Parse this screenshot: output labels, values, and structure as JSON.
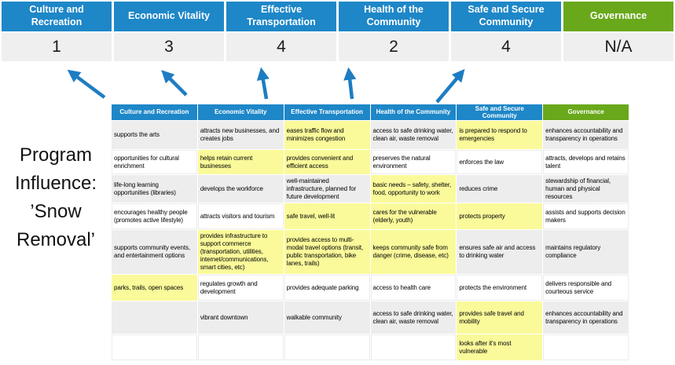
{
  "title": "Program Influence: ’Snow Removal’",
  "colors": {
    "header_blue": "#1E87C8",
    "header_green": "#69A81B",
    "highlight_yellow": "#FAFA9B",
    "gray_row": "#EDEDED",
    "score_band": "#F0EFEF",
    "arrow_blue": "#1D7DC2"
  },
  "scoreboard": {
    "categories": [
      {
        "label": "Culture and Recreation",
        "score": "1",
        "color": "#1E87C8"
      },
      {
        "label": "Economic Vitality",
        "score": "3",
        "color": "#1E87C8"
      },
      {
        "label": "Effective Transportation",
        "score": "4",
        "color": "#1E87C8"
      },
      {
        "label": "Health of the Community",
        "score": "2",
        "color": "#1E87C8"
      },
      {
        "label": "Safe and Secure Community",
        "score": "4",
        "color": "#1E87C8"
      },
      {
        "label": "Governance",
        "score": "N/A",
        "color": "#69A81B"
      }
    ]
  },
  "matrix": {
    "headers": [
      {
        "label": "Culture and Recreation",
        "color": "#1E87C8"
      },
      {
        "label": "Economic Vitality",
        "color": "#1E87C8"
      },
      {
        "label": "Effective Transportation",
        "color": "#1E87C8"
      },
      {
        "label": "Health of the Community",
        "color": "#1E87C8"
      },
      {
        "label": "Safe and Secure Community",
        "color": "#1E87C8"
      },
      {
        "label": "Governance",
        "color": "#69A81B"
      }
    ],
    "rows": [
      {
        "cells": [
          {
            "text": "supports the arts",
            "highlight": false
          },
          {
            "text": "attracts new businesses, and creates jobs",
            "highlight": false
          },
          {
            "text": "eases traffic flow and minimizes congestion",
            "highlight": true
          },
          {
            "text": "access to safe drinking water, clean air, waste removal",
            "highlight": false
          },
          {
            "text": "is prepared to respond to emergencies",
            "highlight": true
          },
          {
            "text": "enhances accountability and transparency in operations",
            "highlight": false
          }
        ]
      },
      {
        "cells": [
          {
            "text": "opportunities for cultural enrichment",
            "highlight": false
          },
          {
            "text": "helps retain current businesses",
            "highlight": true
          },
          {
            "text": "provides convenient and efficient access",
            "highlight": true
          },
          {
            "text": "preserves the natural environment",
            "highlight": false
          },
          {
            "text": "enforces the law",
            "highlight": false
          },
          {
            "text": "attracts, develops and retains talent",
            "highlight": false
          }
        ]
      },
      {
        "cells": [
          {
            "text": "life-long learning opportunities (libraries)",
            "highlight": false
          },
          {
            "text": "develops the workforce",
            "highlight": false
          },
          {
            "text": "well-maintained infrastructure, planned for future development",
            "highlight": false
          },
          {
            "text": "basic needs – safety, shelter, food, opportunity to work",
            "highlight": true
          },
          {
            "text": "reduces crime",
            "highlight": false
          },
          {
            "text": "stewardship of financial, human and physical resources",
            "highlight": false
          }
        ]
      },
      {
        "cells": [
          {
            "text": "encourages healthy people (promotes active lifestyle)",
            "highlight": false
          },
          {
            "text": "attracts visitors and tourism",
            "highlight": false
          },
          {
            "text": "safe travel, well-lit",
            "highlight": true
          },
          {
            "text": "cares for the vulnerable (elderly, youth)",
            "highlight": true
          },
          {
            "text": "protects property",
            "highlight": true
          },
          {
            "text": "assists and supports decision makers",
            "highlight": false
          }
        ]
      },
      {
        "cells": [
          {
            "text": "supports community events, and entertainment options",
            "highlight": false
          },
          {
            "text": "provides infrastructure to support commerce (transportation, utilities, internet/communications, smart cities, etc)",
            "highlight": true
          },
          {
            "text": "provides access to multi-modal travel options (transit, public transportation, bike lanes, trails)",
            "highlight": true
          },
          {
            "text": "keeps community safe from danger (crime, disease, etc)",
            "highlight": true
          },
          {
            "text": "ensures safe air and access to drinking water",
            "highlight": false
          },
          {
            "text": "maintains regulatory compliance",
            "highlight": false
          }
        ]
      },
      {
        "cells": [
          {
            "text": "parks, trails, open spaces",
            "highlight": true
          },
          {
            "text": "regulates growth and development",
            "highlight": false
          },
          {
            "text": "provides adequate parking",
            "highlight": false
          },
          {
            "text": "access to health care",
            "highlight": false
          },
          {
            "text": "protects the environment",
            "highlight": false
          },
          {
            "text": "delivers responsible and courteous service",
            "highlight": false
          }
        ]
      },
      {
        "cells": [
          {
            "text": "",
            "highlight": false
          },
          {
            "text": "vibrant downtown",
            "highlight": false
          },
          {
            "text": "walkable community",
            "highlight": false
          },
          {
            "text": "access to safe drinking water, clean air, waste removal",
            "highlight": false
          },
          {
            "text": "provides safe travel and mobility",
            "highlight": true
          },
          {
            "text": "enhances accountability and transparency in operations",
            "highlight": false
          }
        ]
      },
      {
        "cells": [
          {
            "text": "",
            "highlight": false
          },
          {
            "text": "",
            "highlight": false
          },
          {
            "text": "",
            "highlight": false
          },
          {
            "text": "",
            "highlight": false
          },
          {
            "text": "looks after it's most vulnerable",
            "highlight": true
          },
          {
            "text": "",
            "highlight": false
          }
        ]
      }
    ]
  }
}
